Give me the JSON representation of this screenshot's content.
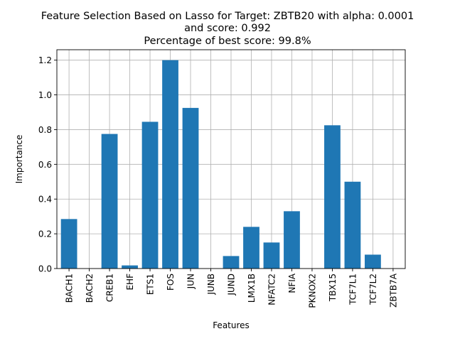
{
  "chart_data": {
    "type": "bar",
    "title_lines": [
      "Feature Selection Based on Lasso for Target: ZBTB20 with alpha: 0.0001",
      "and score: 0.992",
      "Percentage of best score: 99.8%"
    ],
    "xlabel": "Features",
    "ylabel": "Importance",
    "categories": [
      "BACH1",
      "BACH2",
      "CREB1",
      "EHF",
      "ETS1",
      "FOS",
      "JUN",
      "JUNB",
      "JUND",
      "LMX1B",
      "NFATC2",
      "NFIA",
      "PKNOX2",
      "TBX15",
      "TCF7L1",
      "TCF7L2",
      "ZBTB7A"
    ],
    "values": [
      0.285,
      0.0,
      0.775,
      0.018,
      0.845,
      1.2,
      0.925,
      0.0,
      0.072,
      0.24,
      0.15,
      0.33,
      0.0,
      0.825,
      0.5,
      0.08,
      0.0
    ],
    "ylim": [
      0,
      1.26
    ],
    "yticks": [
      "0.0",
      "0.2",
      "0.4",
      "0.6",
      "0.8",
      "1.0",
      "1.2"
    ],
    "ytick_values": [
      0,
      0.2,
      0.4,
      0.6,
      0.8,
      1.0,
      1.2
    ],
    "grid": true,
    "bar_color": "#1f77b4"
  }
}
